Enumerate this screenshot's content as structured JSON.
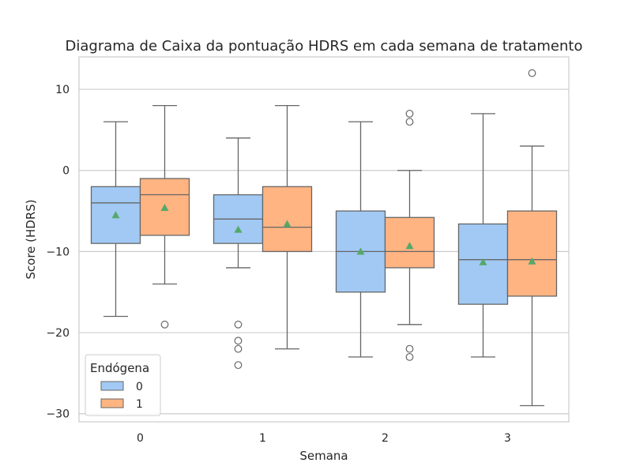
{
  "chart_data": {
    "type": "box",
    "title": "Diagrama de Caixa da pontuação HDRS em cada semana de tratamento",
    "xlabel": "Semana",
    "ylabel": "Score (HDRS)",
    "ylim": [
      -31,
      14
    ],
    "yticks": [
      10,
      0,
      -10,
      -20,
      -30
    ],
    "ytick_labels": [
      "10",
      "0",
      "−10",
      "−20",
      "−30"
    ],
    "grid": true,
    "categories": [
      "0",
      "1",
      "2",
      "3"
    ],
    "legend": {
      "title": "Endógena",
      "placement": "lower-left",
      "entries": [
        "0",
        "1"
      ]
    },
    "series": [
      {
        "name": "0",
        "color": "#a1c9f4",
        "boxes": [
          {
            "category": "0",
            "whisker_low": -18,
            "q1": -9,
            "median": -4,
            "q3": -2,
            "whisker_high": 6,
            "mean": -5.5,
            "outliers": []
          },
          {
            "category": "1",
            "whisker_low": -12,
            "q1": -9,
            "median": -6,
            "q3": -3,
            "whisker_high": 4,
            "mean": -7.3,
            "outliers": [
              -19,
              -21,
              -22,
              -24
            ]
          },
          {
            "category": "2",
            "whisker_low": -23,
            "q1": -15,
            "median": -10,
            "q3": -5,
            "whisker_high": 6,
            "mean": -10,
            "outliers": []
          },
          {
            "category": "3",
            "whisker_low": -23,
            "q1": -16.5,
            "median": -11,
            "q3": -6.6,
            "whisker_high": 7,
            "mean": -11.3,
            "outliers": []
          }
        ]
      },
      {
        "name": "1",
        "color": "#ffb482",
        "boxes": [
          {
            "category": "0",
            "whisker_low": -14,
            "q1": -8,
            "median": -3,
            "q3": -1,
            "whisker_high": 8,
            "mean": -4.6,
            "outliers": [
              -19
            ]
          },
          {
            "category": "1",
            "whisker_low": -22,
            "q1": -10,
            "median": -7,
            "q3": -2,
            "whisker_high": 8,
            "mean": -6.6,
            "outliers": []
          },
          {
            "category": "2",
            "whisker_low": -19,
            "q1": -12,
            "median": -10,
            "q3": -5.8,
            "whisker_high": 0,
            "mean": -9.3,
            "outliers": [
              6,
              7,
              -22,
              -23
            ]
          },
          {
            "category": "3",
            "whisker_low": -29,
            "q1": -15.5,
            "median": -11,
            "q3": -5,
            "whisker_high": 3,
            "mean": -11.2,
            "outliers": [
              12
            ]
          }
        ]
      }
    ],
    "colors": {
      "box_edge": "#666666",
      "mean_marker": "#55a868",
      "grid": "#cccccc",
      "frame": "#cccccc"
    }
  }
}
